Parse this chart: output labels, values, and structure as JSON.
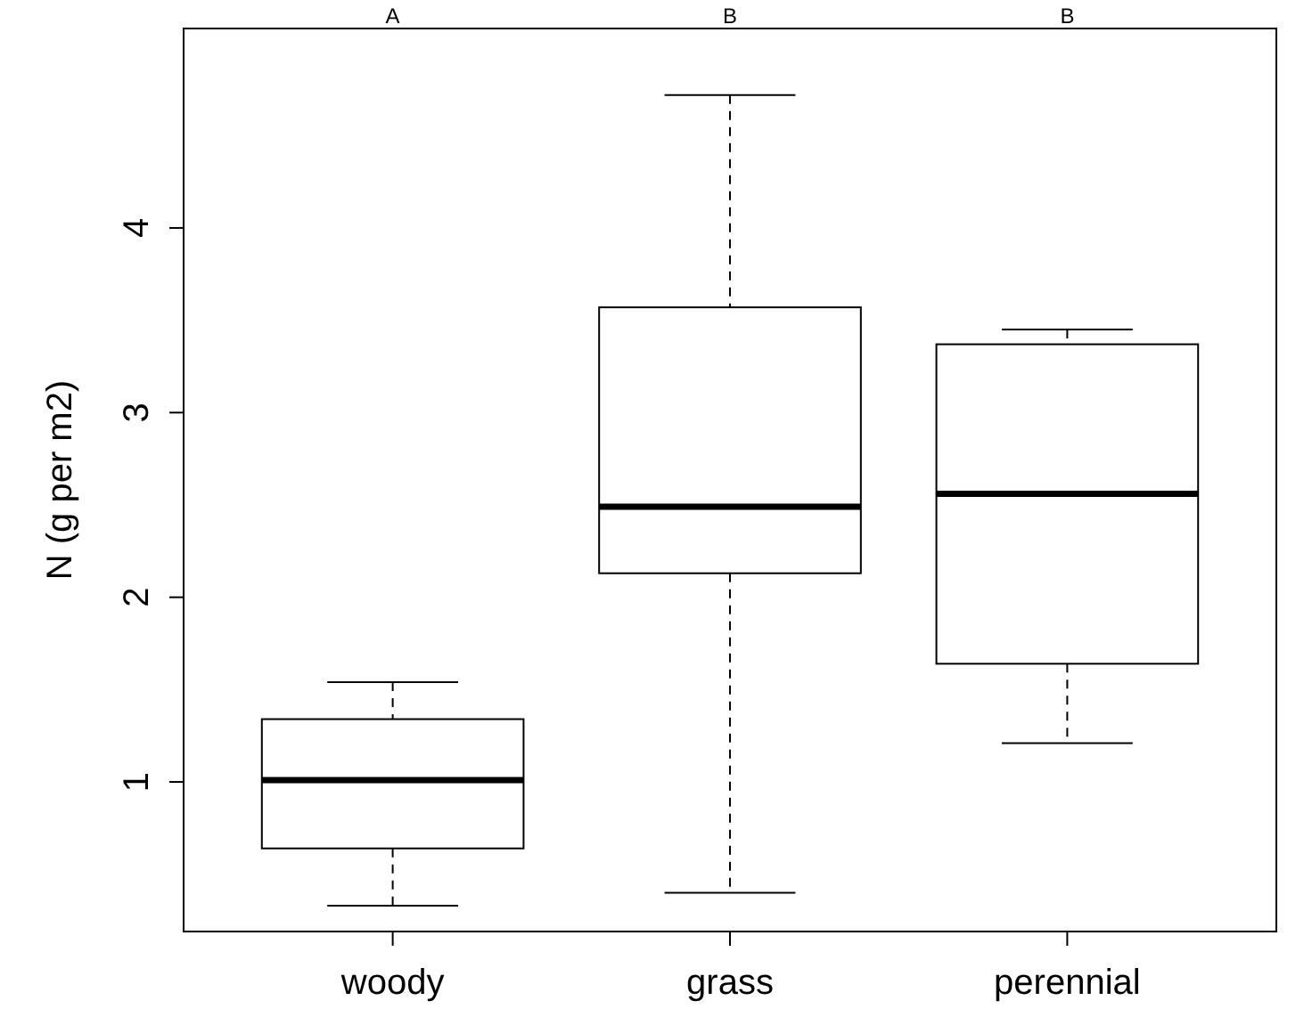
{
  "chart_data": {
    "type": "box",
    "ylabel": "N (g per m2)",
    "categories": [
      "woody",
      "grass",
      "perennial"
    ],
    "boxes": [
      {
        "low": 0.33,
        "q1": 0.64,
        "median": 1.01,
        "q3": 1.34,
        "high": 1.54
      },
      {
        "low": 0.4,
        "q1": 2.13,
        "median": 2.49,
        "q3": 3.57,
        "high": 4.72
      },
      {
        "low": 1.21,
        "q1": 1.64,
        "median": 2.56,
        "q3": 3.37,
        "high": 3.45
      }
    ],
    "ylim": [
      0.19,
      5.08
    ],
    "yticks": [
      1,
      2,
      3,
      4
    ],
    "grid": false,
    "annotations": [
      "A",
      "B",
      "B"
    ]
  }
}
